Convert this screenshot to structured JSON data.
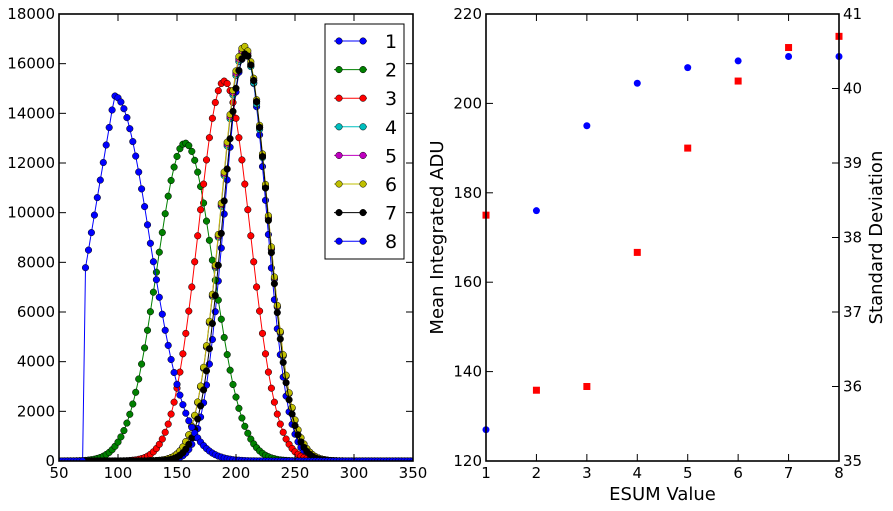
{
  "chart_data": [
    {
      "type": "line",
      "title": "",
      "xlabel": "",
      "ylabel": "",
      "xlim": [
        50,
        350
      ],
      "ylim": [
        0,
        18000
      ],
      "xticks": [
        50,
        100,
        150,
        200,
        250,
        300,
        350
      ],
      "yticks": [
        0,
        2000,
        4000,
        6000,
        8000,
        10000,
        12000,
        14000,
        16000,
        18000
      ],
      "legend_position": "top-right",
      "marker": "circle",
      "series": [
        {
          "name": "1",
          "color": "#0000ff",
          "shape": {
            "type": "gauss",
            "peak": 16400,
            "center": 208,
            "sigma": 18
          }
        },
        {
          "name": "2",
          "color": "#008000",
          "shape": {
            "type": "gauss",
            "peak": 12800,
            "center": 157,
            "sigma": 24
          }
        },
        {
          "name": "3",
          "color": "#ff0000",
          "shape": {
            "type": "gauss",
            "peak": 15300,
            "center": 190,
            "sigma": 22
          }
        },
        {
          "name": "4",
          "color": "#00bfbf",
          "shape": {
            "type": "gauss",
            "peak": 16500,
            "center": 207,
            "sigma": 20
          }
        },
        {
          "name": "5",
          "color": "#bf00bf",
          "shape": {
            "type": "gauss",
            "peak": 16600,
            "center": 207,
            "sigma": 20
          }
        },
        {
          "name": "6",
          "color": "#bfbf00",
          "shape": {
            "type": "gauss",
            "peak": 16700,
            "center": 207,
            "sigma": 20
          }
        },
        {
          "name": "7",
          "color": "#000000",
          "shape": {
            "type": "gauss",
            "peak": 16400,
            "center": 208,
            "sigma": 19
          }
        },
        {
          "name": "8",
          "color": "#0000ff",
          "shape": {
            "type": "early",
            "peak": 14700,
            "center": 97,
            "sigma": 30,
            "threshold": 72
          }
        }
      ]
    },
    {
      "type": "scatter",
      "title": "",
      "xlabel": "ESUM Value",
      "ylabel": "Mean Integrated ADU",
      "y2label": "Standard Deviation",
      "xlim": [
        1,
        8
      ],
      "ylim": [
        120,
        220
      ],
      "y2lim": [
        35,
        41
      ],
      "xticks": [
        1,
        2,
        3,
        4,
        5,
        6,
        7,
        8
      ],
      "yticks": [
        120,
        140,
        160,
        180,
        200,
        220
      ],
      "y2ticks": [
        35,
        36,
        37,
        38,
        39,
        40,
        41
      ],
      "series": [
        {
          "axis": "left",
          "marker": "circle",
          "color": "#0000ff",
          "x": [
            1,
            2,
            3,
            4,
            5,
            6,
            7,
            8
          ],
          "y": [
            127,
            176,
            195,
            204.5,
            208,
            209.5,
            210.5,
            210.5
          ]
        },
        {
          "axis": "right",
          "marker": "square",
          "color": "#ff0000",
          "x": [
            1,
            2,
            3,
            4,
            5,
            6,
            7,
            8
          ],
          "y": [
            38.3,
            35.95,
            36.0,
            37.8,
            39.2,
            40.1,
            40.55,
            40.7
          ]
        }
      ]
    }
  ]
}
